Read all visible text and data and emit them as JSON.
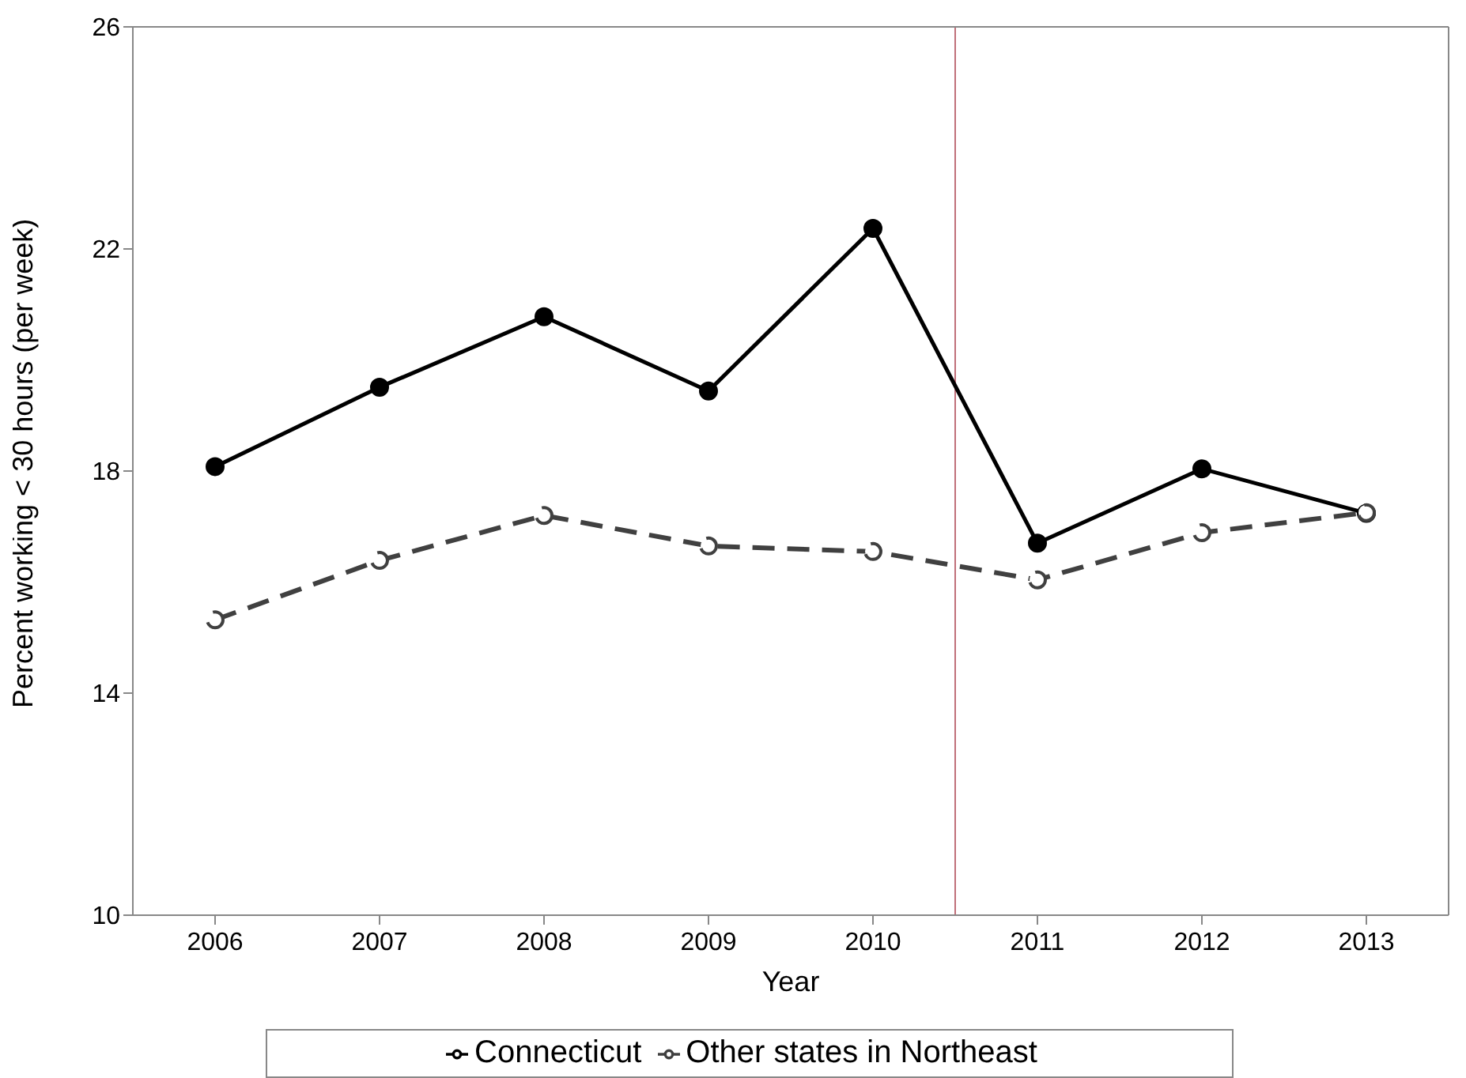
{
  "chart_data": {
    "type": "line",
    "xlabel": "Year",
    "ylabel": "Percent working < 30 hours (per week)",
    "x": [
      2006,
      2007,
      2008,
      2009,
      2010,
      2011,
      2012,
      2013
    ],
    "xlim": [
      2005.5,
      2013.5
    ],
    "xticks": [
      2006,
      2007,
      2008,
      2009,
      2010,
      2011,
      2012,
      2013
    ],
    "ylim": [
      10,
      26
    ],
    "yticks": [
      10,
      14,
      18,
      22,
      26
    ],
    "marker": "circle",
    "series": [
      {
        "name": "Connecticut",
        "color": "#000000",
        "line_style": "solid",
        "values": [
          18.08,
          19.51,
          20.78,
          19.44,
          22.37,
          16.7,
          18.04,
          17.24
        ]
      },
      {
        "name": "Other states in Northeast",
        "color": "#404040",
        "line_style": "dashed",
        "values": [
          15.32,
          16.39,
          17.2,
          16.65,
          16.55,
          16.04,
          16.89,
          17.25
        ]
      }
    ],
    "ref_lines": [
      {
        "axis": "x",
        "value": 2010.5,
        "label": null,
        "color": "#c0707a"
      }
    ],
    "legend": "bottom"
  }
}
